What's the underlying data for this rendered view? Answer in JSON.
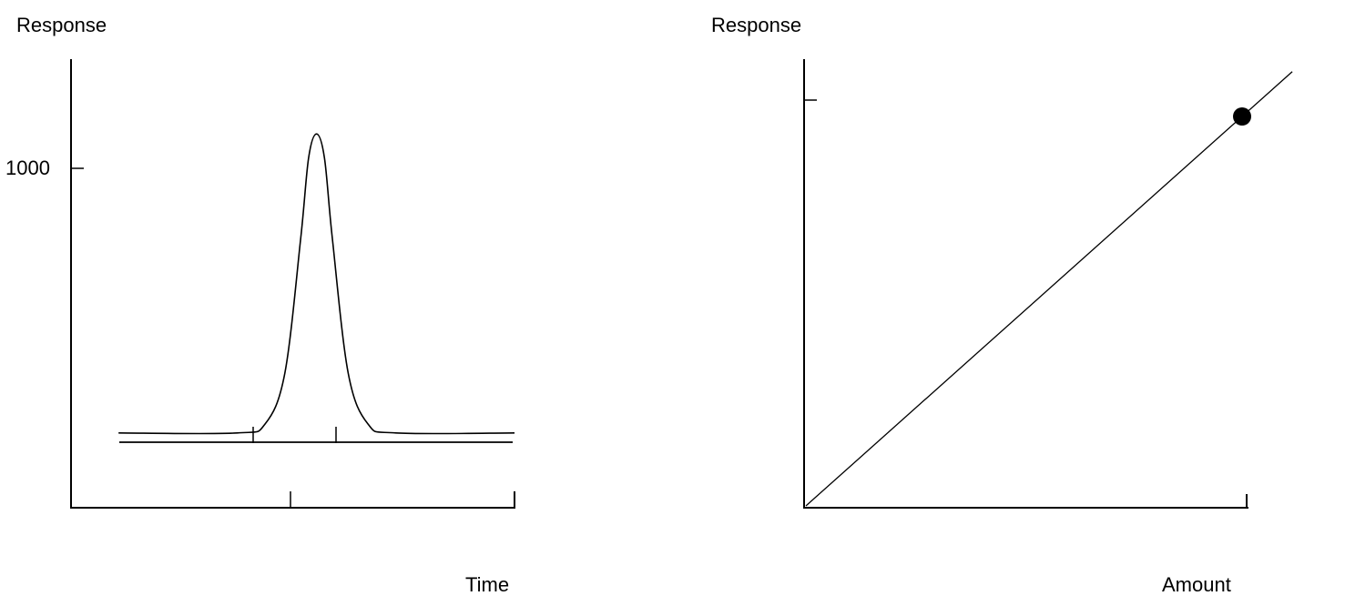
{
  "chart_data": [
    {
      "type": "line",
      "ylabel": "Response",
      "xlabel": "Time",
      "ytick_labels": [
        "1000"
      ],
      "series": [
        {
          "x": [
            0.0,
            0.3,
            0.37,
            0.42,
            0.46,
            0.48,
            0.5,
            0.52,
            0.54,
            0.58,
            0.63,
            0.7,
            1.0
          ],
          "y": [
            0,
            0,
            30,
            200,
            650,
            920,
            1000,
            920,
            650,
            200,
            30,
            0,
            0
          ]
        }
      ],
      "ylim": [
        -250,
        1250
      ],
      "xlim": [
        -0.12,
        1.0
      ]
    },
    {
      "type": "scatter",
      "ylabel": "Response",
      "xlabel": "Amount",
      "series": [
        {
          "x": [
            0,
            1
          ],
          "y": [
            0,
            1
          ]
        },
        {
          "x": [
            1
          ],
          "y": [
            1
          ]
        }
      ],
      "xlim": [
        0,
        1
      ],
      "ylim": [
        0,
        1
      ]
    }
  ]
}
